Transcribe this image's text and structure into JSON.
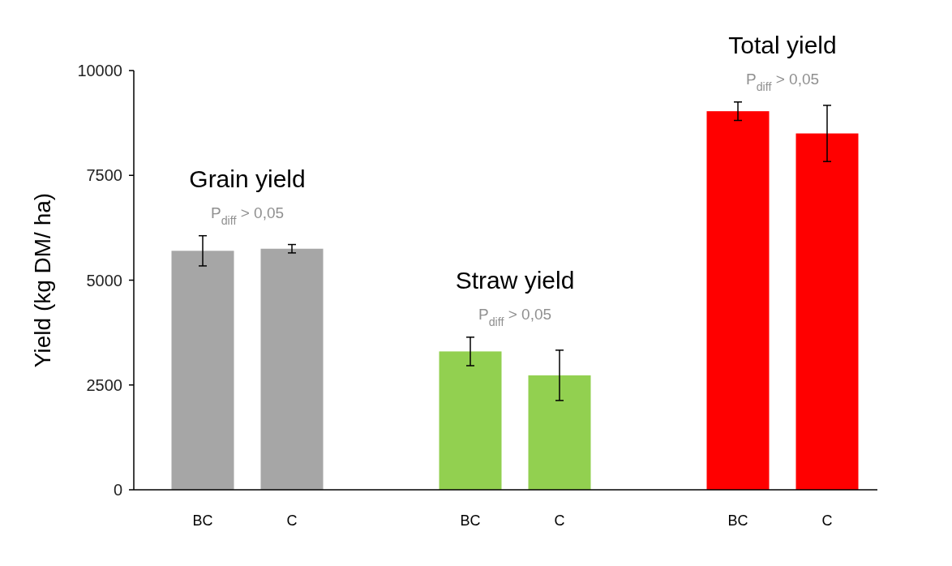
{
  "chart_data": {
    "type": "bar",
    "ylabel": "Yield (kg DM/ ha)",
    "categories": [
      "BC",
      "C",
      null,
      "BC",
      "C",
      null,
      "BC",
      "C"
    ],
    "values": [
      5700,
      5750,
      null,
      3300,
      2730,
      null,
      9030,
      8500
    ],
    "errors": [
      360,
      100,
      null,
      340,
      600,
      null,
      220,
      670
    ],
    "colors": [
      "#a6a6a6",
      "#a6a6a6",
      null,
      "#92d050",
      "#92d050",
      null,
      "#ff0000",
      "#ff0000"
    ],
    "ylim": [
      0,
      10000
    ],
    "yticks": [
      0,
      2500,
      5000,
      7500,
      10000
    ],
    "grid": false,
    "annotations": [
      "Grain yield",
      "P$_{diff}$ > 0,05",
      "Straw yield",
      "P$_{diff}$ > 0,05",
      "Total yield",
      "P$_{diff}$ > 0,05"
    ]
  }
}
